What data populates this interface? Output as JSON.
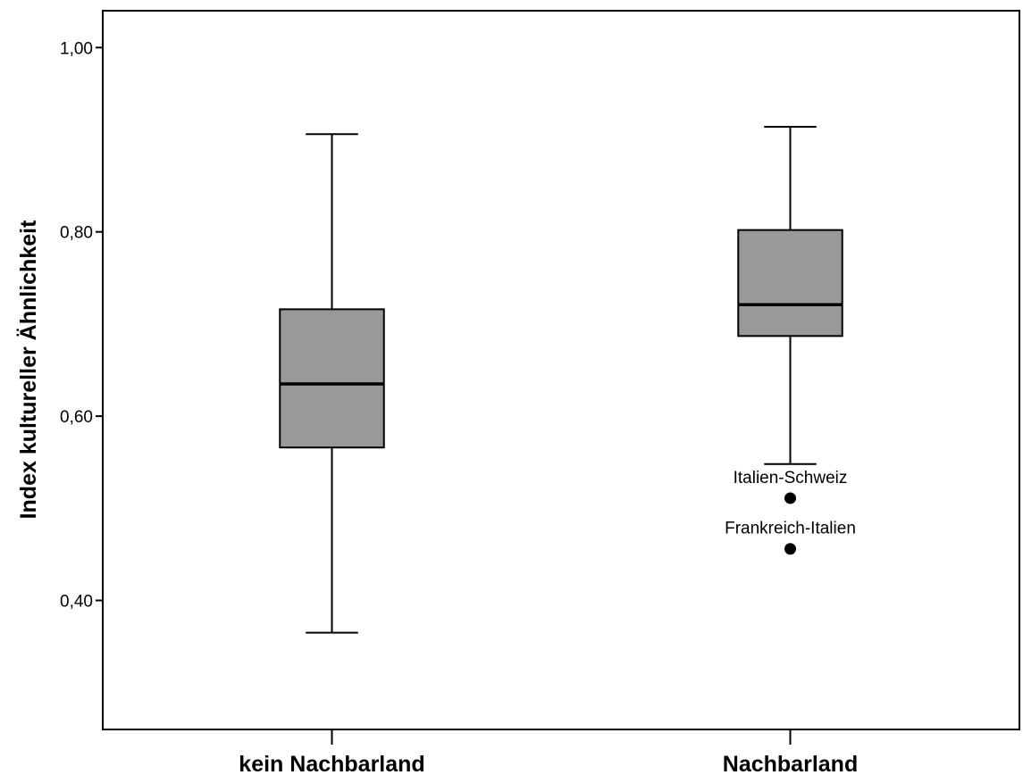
{
  "chart_data": {
    "type": "boxplot",
    "title": "",
    "xlabel": "",
    "ylabel": "Index kultureller Ähnlichkeit",
    "ylim": [
      0.26,
      1.04
    ],
    "yticks": [
      {
        "value": 0.4,
        "label": "0,40"
      },
      {
        "value": 0.6,
        "label": "0,60"
      },
      {
        "value": 0.8,
        "label": "0,80"
      },
      {
        "value": 1.0,
        "label": "1,00"
      }
    ],
    "grid": false,
    "box_color": "#999999",
    "categories": [
      "kein Nachbarland",
      "Nachbarland"
    ],
    "boxes": [
      {
        "category": "kein Nachbarland",
        "whisker_low": 0.365,
        "q1": 0.566,
        "median": 0.635,
        "q3": 0.716,
        "whisker_high": 0.906,
        "outliers": []
      },
      {
        "category": "Nachbarland",
        "whisker_low": 0.548,
        "q1": 0.687,
        "median": 0.721,
        "q3": 0.802,
        "whisker_high": 0.914,
        "outliers": [
          {
            "value": 0.511,
            "label": "Italien-Schweiz"
          },
          {
            "value": 0.456,
            "label": "Frankreich-Italien"
          }
        ]
      }
    ]
  }
}
